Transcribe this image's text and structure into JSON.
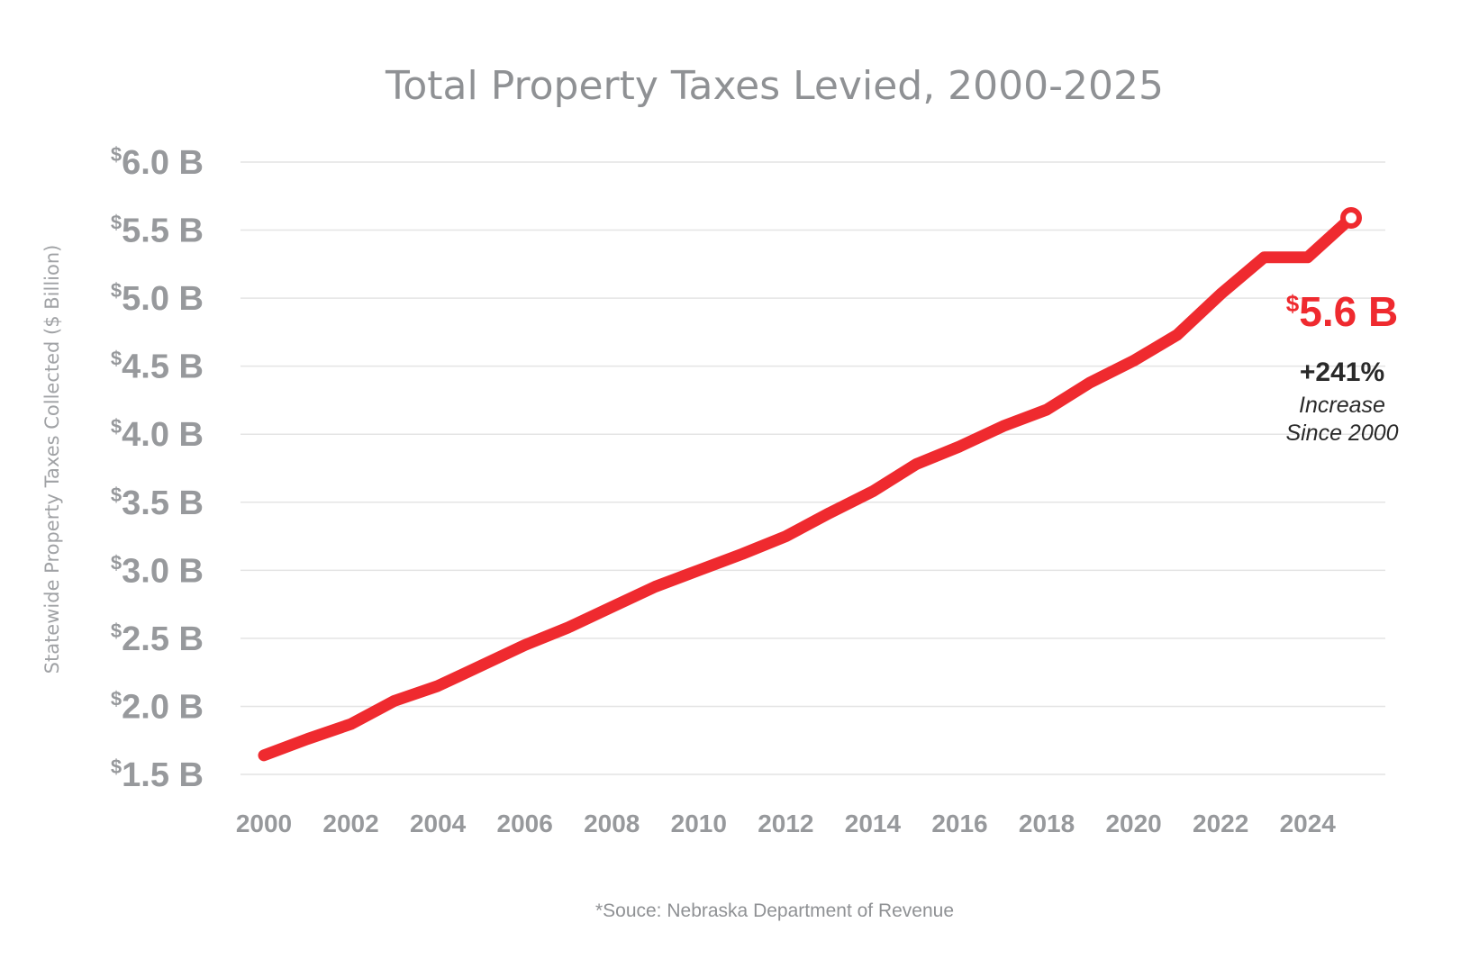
{
  "chart_data": {
    "type": "line",
    "title": "Total Property Taxes Levied, 2000-2025",
    "ylabel": "Statewide Property Taxes Collected ($ Billion)",
    "xlabel": "",
    "ylim": [
      1.5,
      6.0
    ],
    "xlim": [
      2000,
      2025
    ],
    "grid": true,
    "yticks": [
      {
        "value": 6.0,
        "sup": "$",
        "label": "6.0 B"
      },
      {
        "value": 5.5,
        "sup": "$",
        "label": "5.5 B"
      },
      {
        "value": 5.0,
        "sup": "$",
        "label": "5.0 B"
      },
      {
        "value": 4.5,
        "sup": "$",
        "label": "4.5 B"
      },
      {
        "value": 4.0,
        "sup": "$",
        "label": "4.0 B"
      },
      {
        "value": 3.5,
        "sup": "$",
        "label": "3.5 B"
      },
      {
        "value": 3.0,
        "sup": "$",
        "label": "3.0 B"
      },
      {
        "value": 2.5,
        "sup": "$",
        "label": "2.5 B"
      },
      {
        "value": 2.0,
        "sup": "$",
        "label": "2.0 B"
      },
      {
        "value": 1.5,
        "sup": "$",
        "label": "1.5 B"
      }
    ],
    "xticks": [
      {
        "value": 2000,
        "label": "2000"
      },
      {
        "value": 2002,
        "label": "2002"
      },
      {
        "value": 2004,
        "label": "2004"
      },
      {
        "value": 2006,
        "label": "2006"
      },
      {
        "value": 2008,
        "label": "2008"
      },
      {
        "value": 2010,
        "label": "2010"
      },
      {
        "value": 2012,
        "label": "2012"
      },
      {
        "value": 2014,
        "label": "2014"
      },
      {
        "value": 2016,
        "label": "2016"
      },
      {
        "value": 2018,
        "label": "2018"
      },
      {
        "value": 2020,
        "label": "2020"
      },
      {
        "value": 2022,
        "label": "2022"
      },
      {
        "value": 2024,
        "label": "2024"
      }
    ],
    "series": [
      {
        "name": "Total Property Taxes Levied",
        "color": "#ef2a2f",
        "x": [
          2000,
          2001,
          2002,
          2003,
          2004,
          2005,
          2006,
          2007,
          2008,
          2009,
          2010,
          2011,
          2012,
          2013,
          2014,
          2015,
          2016,
          2017,
          2018,
          2019,
          2020,
          2021,
          2022,
          2023,
          2024,
          2025
        ],
        "values": [
          1.64,
          1.76,
          1.87,
          2.04,
          2.15,
          2.3,
          2.45,
          2.58,
          2.73,
          2.88,
          3.0,
          3.12,
          3.25,
          3.42,
          3.58,
          3.78,
          3.91,
          4.06,
          4.18,
          4.38,
          4.54,
          4.73,
          5.03,
          5.3,
          5.3,
          5.59
        ]
      }
    ],
    "annotations": {
      "value_sup": "$",
      "value": "5.6 B",
      "increase": "+241%",
      "note_line1": "Increase",
      "note_line2": "Since 2000"
    }
  },
  "source": "*Souce: Nebraska Department of Revenue"
}
